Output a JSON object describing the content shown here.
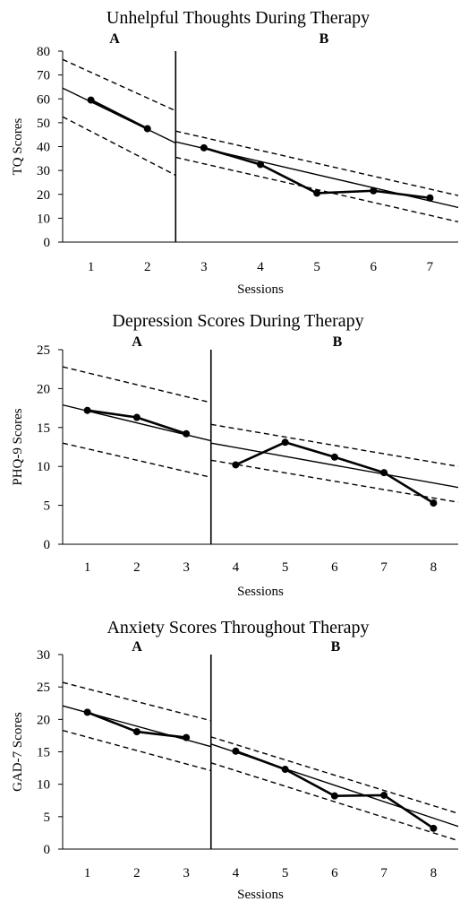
{
  "chart_data": [
    {
      "type": "line",
      "title": "Unhelpful Thoughts During Therapy",
      "xlabel": "Sessions",
      "ylabel": "TQ Scores",
      "ylim": [
        0,
        80
      ],
      "yticks": [
        "0",
        "10",
        "20",
        "30",
        "40",
        "50",
        "60",
        "70",
        "80"
      ],
      "categories": [
        "1",
        "2",
        "3",
        "4",
        "5",
        "6",
        "7"
      ],
      "phase_labels": [
        "A",
        "B"
      ],
      "phase_split_after_session": 2,
      "series": [
        {
          "values": [
            59.5,
            47.5,
            39.5,
            32.5,
            20.5,
            21.5,
            18.5
          ]
        }
      ],
      "phase_a_trend": {
        "start": [
          0.5,
          64.5
        ],
        "end": [
          2.5,
          41.5
        ]
      },
      "phase_a_bands": [
        {
          "start": [
            0.5,
            76.5
          ],
          "end": [
            2.5,
            55.0
          ]
        },
        {
          "start": [
            0.5,
            52.5
          ],
          "end": [
            2.5,
            28.0
          ]
        }
      ],
      "phase_b_trend": {
        "start": [
          2.5,
          42.0
        ],
        "end": [
          7.5,
          14.5
        ]
      },
      "phase_b_bands": [
        {
          "start": [
            2.5,
            46.5
          ],
          "end": [
            7.5,
            19.5
          ]
        },
        {
          "start": [
            2.5,
            35.5
          ],
          "end": [
            7.5,
            8.5
          ]
        }
      ]
    },
    {
      "type": "line",
      "title": "Depression Scores During Therapy",
      "xlabel": "Sessions",
      "ylabel": "PHQ-9 Scores",
      "ylim": [
        0,
        25
      ],
      "yticks": [
        "0",
        "5",
        "10",
        "15",
        "20",
        "25"
      ],
      "categories": [
        "1",
        "2",
        "3",
        "4",
        "5",
        "6",
        "7",
        "8"
      ],
      "phase_labels": [
        "A",
        "B"
      ],
      "phase_split_after_session": 3,
      "series": [
        {
          "values": [
            17.2,
            16.3,
            14.2,
            10.2,
            13.1,
            11.2,
            9.2,
            5.3
          ]
        }
      ],
      "phase_a_trend": {
        "start": [
          0.5,
          17.9
        ],
        "end": [
          3.5,
          13.3
        ]
      },
      "phase_a_bands": [
        {
          "start": [
            0.5,
            22.8
          ],
          "end": [
            3.5,
            18.2
          ]
        },
        {
          "start": [
            0.5,
            13.0
          ],
          "end": [
            3.5,
            8.6
          ]
        }
      ],
      "phase_b_trend": {
        "start": [
          3.5,
          13.0
        ],
        "end": [
          8.5,
          7.3
        ]
      },
      "phase_b_bands": [
        {
          "start": [
            3.5,
            15.4
          ],
          "end": [
            8.5,
            10.0
          ]
        },
        {
          "start": [
            3.5,
            10.8
          ],
          "end": [
            8.5,
            5.4
          ]
        }
      ]
    },
    {
      "type": "line",
      "title": "Anxiety Scores Throughout Therapy",
      "xlabel": "Sessions",
      "ylabel": "GAD-7 Scores",
      "ylim": [
        0,
        30
      ],
      "yticks": [
        "0",
        "5",
        "10",
        "15",
        "20",
        "25",
        "30"
      ],
      "categories": [
        "1",
        "2",
        "3",
        "4",
        "5",
        "6",
        "7",
        "8"
      ],
      "phase_labels": [
        "A",
        "B"
      ],
      "phase_split_after_session": 3,
      "series": [
        {
          "values": [
            21.1,
            18.1,
            17.2,
            15.1,
            12.3,
            8.2,
            8.3,
            3.2
          ]
        }
      ],
      "phase_a_trend": {
        "start": [
          0.5,
          22.1
        ],
        "end": [
          3.5,
          15.8
        ]
      },
      "phase_a_bands": [
        {
          "start": [
            0.5,
            25.7
          ],
          "end": [
            3.5,
            19.8
          ]
        },
        {
          "start": [
            0.5,
            18.3
          ],
          "end": [
            3.5,
            12.1
          ]
        }
      ],
      "phase_b_trend": {
        "start": [
          3.5,
          16.2
        ],
        "end": [
          8.5,
          3.5
        ]
      },
      "phase_b_bands": [
        {
          "start": [
            3.5,
            17.3
          ],
          "end": [
            8.5,
            5.5
          ]
        },
        {
          "start": [
            3.5,
            13.3
          ],
          "end": [
            8.5,
            1.3
          ]
        }
      ]
    }
  ]
}
